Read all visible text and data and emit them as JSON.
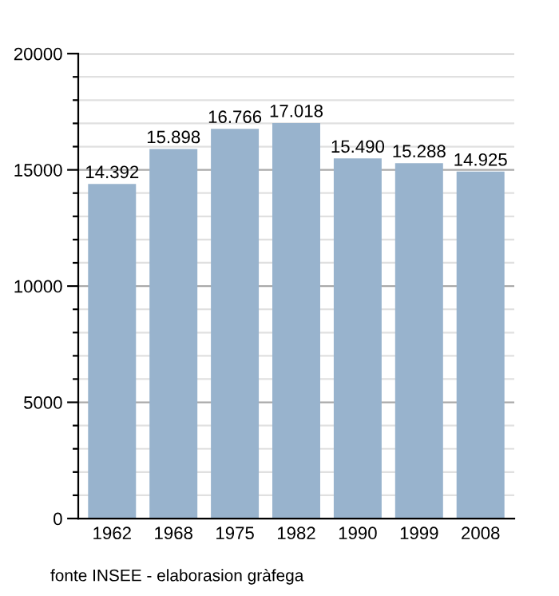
{
  "chart_data": {
    "type": "bar",
    "categories": [
      "1962",
      "1968",
      "1975",
      "1982",
      "1990",
      "1999",
      "2008"
    ],
    "values": [
      14392,
      15898,
      16766,
      17018,
      15490,
      15288,
      14925
    ],
    "value_labels": [
      "14.392",
      "15.898",
      "16.766",
      "17.018",
      "15.490",
      "15.288",
      "14.925"
    ],
    "color": "#98b3cd",
    "ylim": [
      0,
      20000
    ],
    "yticks": [
      0,
      {
        "value": 1000,
        "label": null
      },
      {
        "value": 2000,
        "label": null
      },
      {
        "value": 3000,
        "label": null
      },
      {
        "value": 4000,
        "label": null
      },
      5000,
      {
        "value": 6000,
        "label": null
      },
      {
        "value": 7000,
        "label": null
      },
      {
        "value": 8000,
        "label": null
      },
      {
        "value": 9000,
        "label": null
      },
      10000,
      {
        "value": 11000,
        "label": null
      },
      {
        "value": 12000,
        "label": null
      },
      {
        "value": 13000,
        "label": null
      },
      {
        "value": 14000,
        "label": null
      },
      15000,
      {
        "value": 16000,
        "label": null
      },
      {
        "value": 17000,
        "label": null
      },
      {
        "value": 18000,
        "label": null
      },
      {
        "value": 19000,
        "label": null
      },
      20000
    ],
    "grid": "y",
    "annotations": [
      "fonte INSEE - elaborasion gràfega"
    ]
  }
}
